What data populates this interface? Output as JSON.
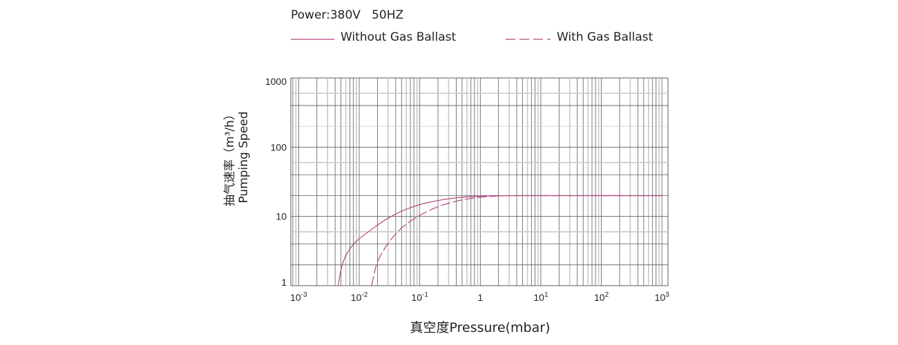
{
  "legend": {
    "power": "Power:380V   50HZ",
    "without": "Without Gas Ballast",
    "with": "With Gas Ballast"
  },
  "colors": {
    "curve": "#b4467f",
    "grid_dark": "#5a5a5a",
    "grid_light": "#c8c8c8"
  },
  "chart_data": {
    "type": "line",
    "xlabel": "真空度Pressure(mbar)",
    "ylabel_cn": "抽气速率（m³/h）",
    "ylabel_en": "Pumping Speed",
    "x_scale": "log",
    "y_scale": "log",
    "xlim": [
      0.001,
      1000
    ],
    "ylim": [
      1,
      1000
    ],
    "x_ticks": [
      {
        "v": 0.001,
        "base": "10",
        "exp": "-3"
      },
      {
        "v": 0.01,
        "base": "10",
        "exp": "-2"
      },
      {
        "v": 0.1,
        "base": "10",
        "exp": "-1"
      },
      {
        "v": 1,
        "base": "1",
        "exp": ""
      },
      {
        "v": 10,
        "base": "10",
        "exp": "1"
      },
      {
        "v": 100,
        "base": "10",
        "exp": "2"
      },
      {
        "v": 1000,
        "base": "10",
        "exp": "3"
      }
    ],
    "y_ticks": [
      {
        "v": 1,
        "label": "1"
      },
      {
        "v": 10,
        "label": "10"
      },
      {
        "v": 100,
        "label": "100"
      },
      {
        "v": 1000,
        "label": "1000"
      }
    ],
    "grid": true,
    "legend_position": "top",
    "series": [
      {
        "name": "Without Gas Ballast",
        "style": "solid",
        "x": [
          0.0045,
          0.005,
          0.006,
          0.008,
          0.01,
          0.02,
          0.03,
          0.05,
          0.1,
          0.2,
          0.3,
          0.5,
          1,
          2,
          10,
          100,
          1000
        ],
        "y": [
          1,
          1.8,
          2.8,
          4,
          4.8,
          7.5,
          9.5,
          12,
          15,
          17,
          18,
          19,
          19.7,
          20,
          20,
          20,
          20
        ]
      },
      {
        "name": "With Gas Ballast",
        "style": "dashed",
        "x": [
          0.016,
          0.018,
          0.02,
          0.03,
          0.05,
          0.1,
          0.2,
          0.3,
          0.5,
          1,
          2,
          3,
          10,
          100,
          1000
        ],
        "y": [
          1,
          1.6,
          2.3,
          4.2,
          7,
          10.5,
          14,
          15.5,
          17.5,
          19,
          19.8,
          20,
          20,
          20,
          20
        ]
      }
    ]
  }
}
